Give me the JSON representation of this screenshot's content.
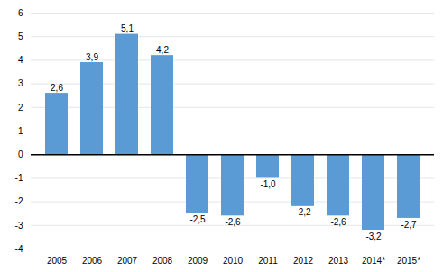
{
  "chart_data": {
    "type": "bar",
    "categories": [
      "2005",
      "2006",
      "2007",
      "2008",
      "2009",
      "2010",
      "2011",
      "2012",
      "2013",
      "2014*",
      "2015*"
    ],
    "values": [
      2.6,
      3.9,
      5.1,
      4.2,
      -2.5,
      -2.6,
      -1.0,
      -2.2,
      -2.6,
      -3.2,
      -2.7
    ],
    "value_labels": [
      "2,6",
      "3,9",
      "5,1",
      "4,2",
      "-2,5",
      "-2,6",
      "-1,0",
      "-2,2",
      "-2,6",
      "-3,2",
      "-2,7"
    ],
    "data_labels": true,
    "color": "#5B9BD5",
    "ylim": [
      -4,
      6
    ],
    "yticks": [
      -4,
      -3,
      -2,
      -1,
      0,
      1,
      2,
      3,
      4,
      5,
      6
    ],
    "grid": true
  }
}
